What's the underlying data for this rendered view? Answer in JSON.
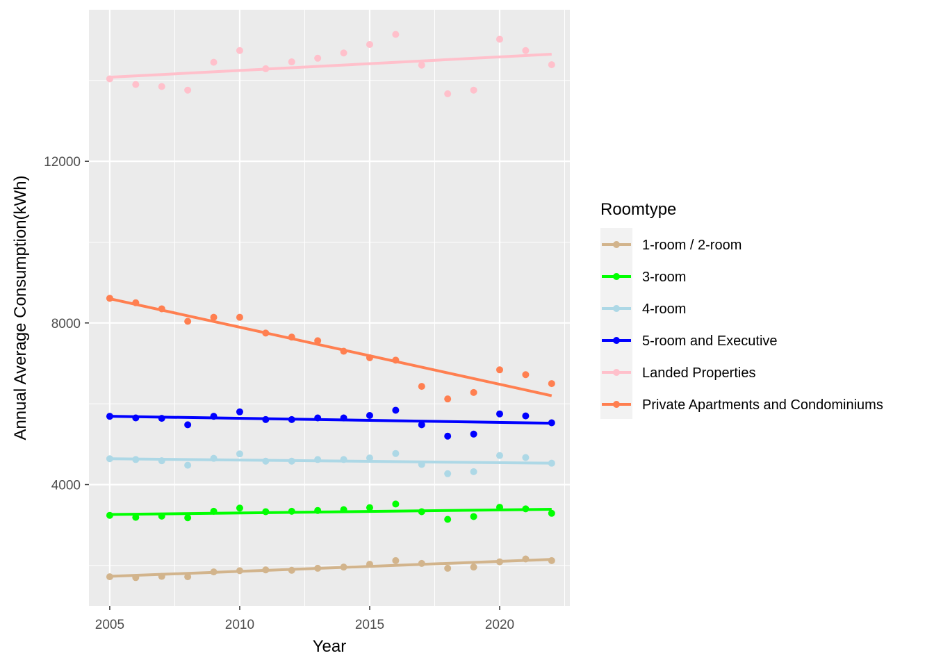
{
  "chart_data": {
    "type": "scatter",
    "title": "",
    "xlabel": "Year",
    "ylabel": "Annual Average Consumption(kWh)",
    "xlim": [
      2004.2,
      2022.7
    ],
    "ylim": [
      1000,
      15750
    ],
    "x_ticks": [
      2005,
      2010,
      2015,
      2020
    ],
    "y_ticks": [
      4000,
      8000,
      12000
    ],
    "grid": true,
    "trend_lines": "linear fit per series",
    "legend": {
      "title": "Roomtype",
      "position": "right"
    },
    "x": [
      2005,
      2006,
      2007,
      2008,
      2009,
      2010,
      2011,
      2012,
      2013,
      2014,
      2015,
      2016,
      2017,
      2018,
      2019,
      2020,
      2021,
      2022
    ],
    "series": [
      {
        "name": "1-room / 2-room",
        "color": "#D2B48C",
        "values": [
          1720,
          1700,
          1730,
          1720,
          1840,
          1870,
          1890,
          1880,
          1930,
          1960,
          2030,
          2120,
          2050,
          1930,
          1960,
          2090,
          2160,
          2120
        ],
        "fit": [
          1730,
          2150
        ]
      },
      {
        "name": "3-room",
        "color": "#00FF00",
        "values": [
          3240,
          3190,
          3220,
          3180,
          3340,
          3420,
          3330,
          3340,
          3360,
          3380,
          3430,
          3520,
          3330,
          3140,
          3210,
          3440,
          3400,
          3290
        ],
        "fit": [
          3260,
          3390
        ]
      },
      {
        "name": "4-room",
        "color": "#ADD8E6",
        "values": [
          4640,
          4620,
          4590,
          4480,
          4650,
          4760,
          4580,
          4580,
          4620,
          4620,
          4660,
          4770,
          4500,
          4270,
          4320,
          4720,
          4670,
          4530
        ],
        "fit": [
          4640,
          4530
        ]
      },
      {
        "name": "5-room and Executive",
        "color": "#0000FF",
        "values": [
          5690,
          5650,
          5640,
          5480,
          5690,
          5800,
          5610,
          5610,
          5650,
          5650,
          5710,
          5840,
          5480,
          5200,
          5250,
          5750,
          5700,
          5530
        ],
        "fit": [
          5690,
          5520
        ]
      },
      {
        "name": "Landed Properties",
        "color": "#FFC0CB",
        "values": [
          14040,
          13900,
          13850,
          13760,
          14450,
          14740,
          14290,
          14460,
          14550,
          14680,
          14890,
          15140,
          14380,
          13670,
          13760,
          15020,
          14740,
          14390
        ],
        "fit": [
          14080,
          14650
        ]
      },
      {
        "name": "Private Apartments and Condominiums",
        "color": "#FF7F50",
        "values": [
          8610,
          8500,
          8350,
          8040,
          8140,
          8140,
          7750,
          7650,
          7560,
          7300,
          7140,
          7080,
          6430,
          6120,
          6280,
          6840,
          6720,
          6500
        ],
        "fit": [
          8600,
          6200
        ]
      }
    ]
  }
}
